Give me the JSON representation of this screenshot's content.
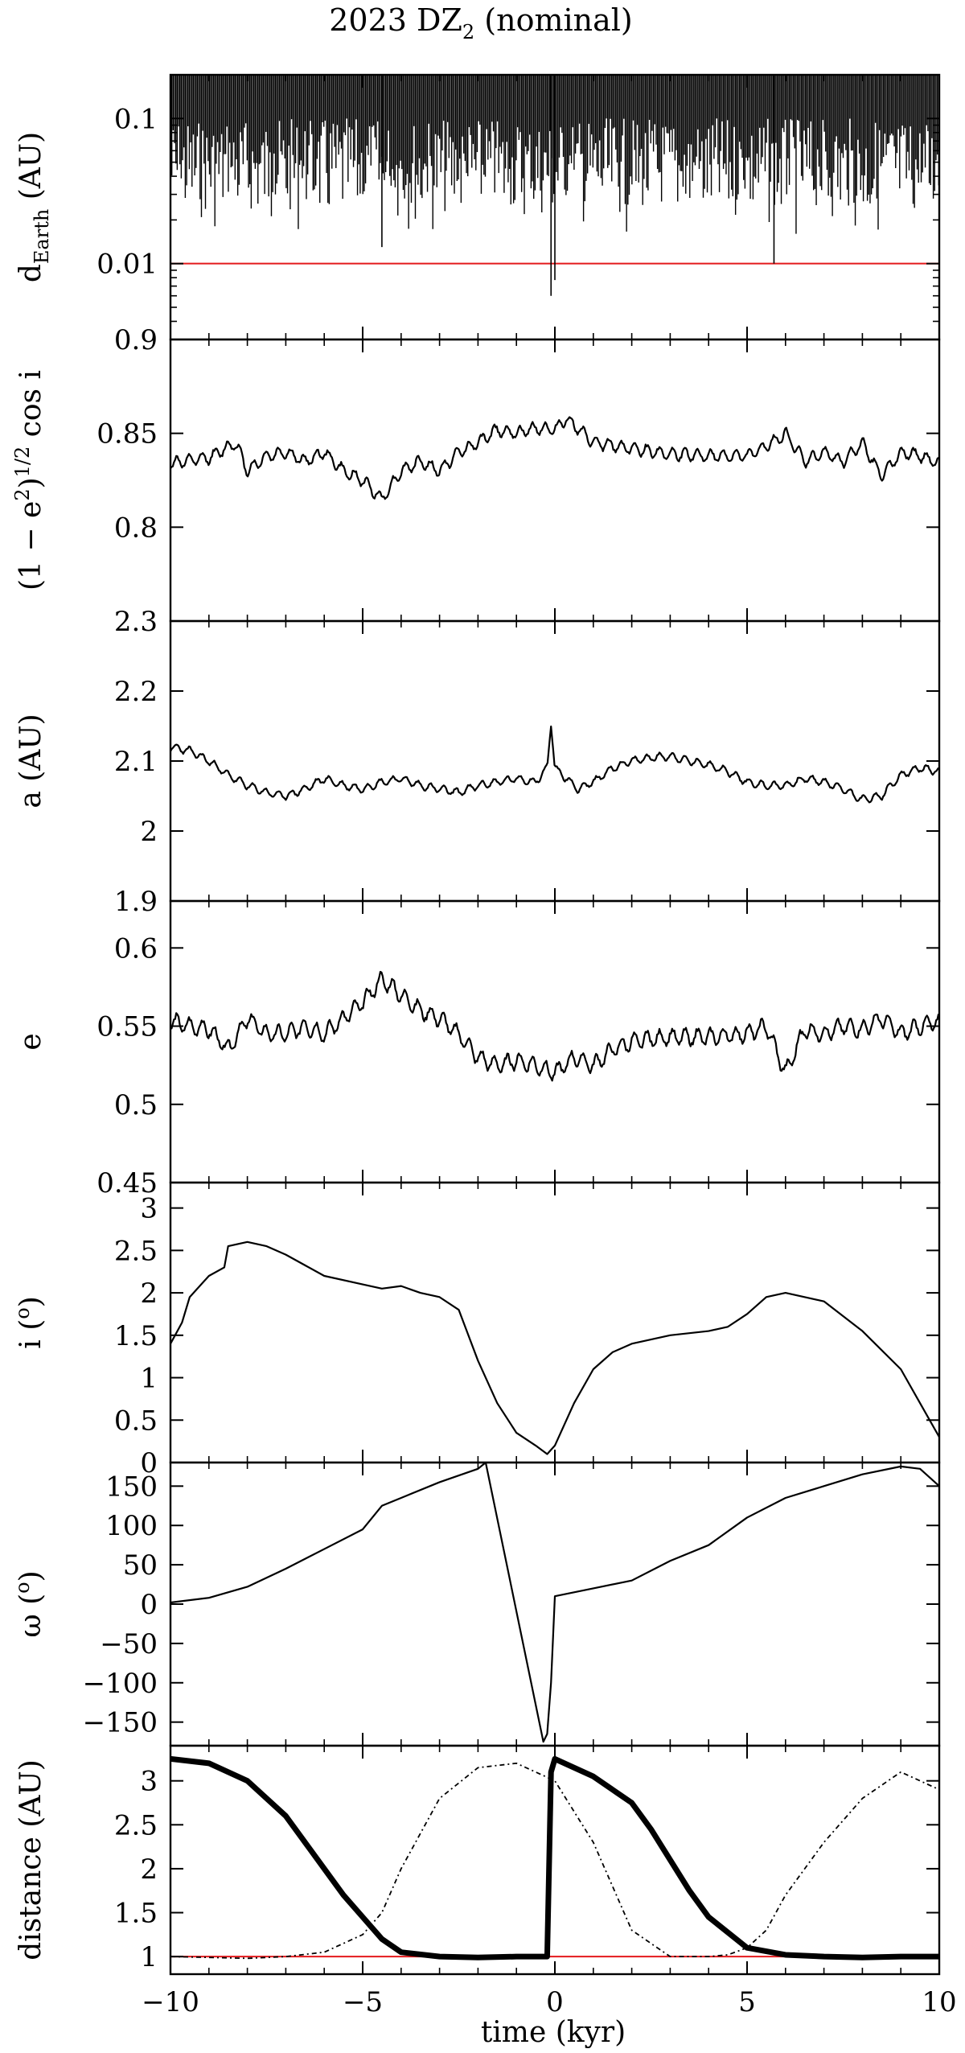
{
  "figure": {
    "title": "2023 DZ",
    "title_subscript": "2",
    "title_suffix": " (nominal)",
    "xlabel": "time (kyr)",
    "xlim": [
      -10,
      10
    ],
    "xticks": [
      "−10",
      "−5",
      "0",
      "5",
      "10"
    ],
    "xtick_values": [
      -10,
      -5,
      0,
      5,
      10
    ]
  },
  "chart_data": [
    {
      "type": "line",
      "panel": "dEarth",
      "ylabel_main": "d",
      "ylabel_sub": "Earth",
      "ylabel_suffix": " (AU)",
      "yscale": "log",
      "ylim": [
        0.003,
        0.2
      ],
      "yticks": [
        "0.1",
        "0.01"
      ],
      "ytick_values": [
        0.1,
        0.01
      ],
      "grid": false,
      "threshold": {
        "value": 0.01,
        "color": "#e41a1c"
      },
      "deep_minima": [
        {
          "x": -4.5,
          "y": 0.013
        },
        {
          "x": -0.1,
          "y": 0.006
        },
        {
          "x": 0.0,
          "y": 0.0077
        },
        {
          "x": 5.7,
          "y": 0.01
        }
      ],
      "series": [
        {
          "values_note_free": true,
          "x": [
            -10,
            10
          ],
          "y_range": [
            0.015,
            0.2
          ]
        }
      ]
    },
    {
      "type": "line",
      "panel": "kozai",
      "ylabel": "(1 − e",
      "ylabel_sup1": "2",
      "ylabel_mid": ")",
      "ylabel_sup2": "1/2",
      "ylabel_end": " cos i",
      "ylim": [
        0.75,
        0.9
      ],
      "yticks": [
        "0.9",
        "0.85",
        "0.8"
      ],
      "ytick_values": [
        0.9,
        0.85,
        0.8
      ],
      "series": [
        {
          "x": [
            -10,
            -9,
            -8.3,
            -8,
            -7.5,
            -7,
            -6.5,
            -6,
            -5.5,
            -5,
            -4.5,
            -4,
            -3.5,
            -3,
            -2.5,
            -2,
            -1.5,
            -1,
            -0.5,
            0,
            0.3,
            1,
            2,
            3,
            4,
            5,
            5.5,
            6,
            6.5,
            7,
            7.5,
            8,
            8.5,
            9,
            9.5,
            10
          ],
          "y": [
            0.834,
            0.837,
            0.845,
            0.83,
            0.838,
            0.84,
            0.835,
            0.84,
            0.83,
            0.825,
            0.815,
            0.83,
            0.835,
            0.83,
            0.84,
            0.845,
            0.852,
            0.85,
            0.853,
            0.852,
            0.858,
            0.845,
            0.842,
            0.839,
            0.838,
            0.838,
            0.843,
            0.85,
            0.835,
            0.84,
            0.835,
            0.845,
            0.827,
            0.84,
            0.838,
            0.834
          ]
        }
      ]
    },
    {
      "type": "line",
      "panel": "a",
      "ylabel": "a (AU)",
      "ylim": [
        1.9,
        2.3
      ],
      "yticks": [
        "2.3",
        "2.2",
        "2.1",
        "2",
        "1.9"
      ],
      "ytick_values": [
        2.3,
        2.2,
        2.1,
        2.0,
        1.9
      ],
      "series": [
        {
          "x": [
            -10,
            -9.5,
            -9,
            -8.5,
            -8,
            -7.5,
            -7,
            -6.5,
            -6,
            -5.5,
            -5,
            -4.5,
            -4,
            -3.5,
            -3,
            -2.5,
            -2,
            -1.5,
            -1,
            -0.5,
            -0.2,
            -0.1,
            0,
            0.3,
            0.6,
            1,
            1.5,
            2,
            2.5,
            3,
            3.5,
            4,
            4.5,
            5,
            5.5,
            6,
            6.5,
            7,
            7.5,
            8,
            8.5,
            9,
            9.5,
            10
          ],
          "y": [
            2.12,
            2.115,
            2.1,
            2.08,
            2.065,
            2.055,
            2.05,
            2.06,
            2.075,
            2.065,
            2.06,
            2.07,
            2.075,
            2.065,
            2.06,
            2.055,
            2.065,
            2.07,
            2.075,
            2.07,
            2.09,
            2.155,
            2.09,
            2.075,
            2.06,
            2.07,
            2.09,
            2.1,
            2.105,
            2.107,
            2.1,
            2.095,
            2.085,
            2.07,
            2.065,
            2.065,
            2.075,
            2.07,
            2.06,
            2.045,
            2.05,
            2.08,
            2.09,
            2.085
          ]
        }
      ]
    },
    {
      "type": "line",
      "panel": "e",
      "ylabel": "e",
      "ylim": [
        0.45,
        0.63
      ],
      "yticks": [
        "0.6",
        "0.55",
        "0.5",
        "0.45"
      ],
      "ytick_values": [
        0.6,
        0.55,
        0.5,
        0.45
      ],
      "series": [
        {
          "x": [
            -10,
            -9.5,
            -9,
            -8.5,
            -8,
            -7.5,
            -7,
            -6.5,
            -6,
            -5.5,
            -5,
            -4.5,
            -4,
            -3.5,
            -3,
            -2.5,
            -2,
            -1.5,
            -1,
            -0.5,
            0,
            0.5,
            1,
            1.5,
            2,
            3,
            4,
            5,
            5.5,
            6,
            6.5,
            7,
            7.5,
            8,
            8.5,
            9,
            9.5,
            10
          ],
          "y": [
            0.553,
            0.55,
            0.548,
            0.535,
            0.555,
            0.545,
            0.545,
            0.55,
            0.545,
            0.555,
            0.565,
            0.58,
            0.57,
            0.56,
            0.555,
            0.545,
            0.53,
            0.525,
            0.528,
            0.525,
            0.52,
            0.53,
            0.525,
            0.535,
            0.54,
            0.543,
            0.543,
            0.545,
            0.55,
            0.52,
            0.548,
            0.545,
            0.55,
            0.548,
            0.555,
            0.545,
            0.55,
            0.553
          ]
        }
      ]
    },
    {
      "type": "line",
      "panel": "i",
      "ylabel": "i (",
      "ylabel_sup": "o",
      "ylabel_end": ")",
      "ylim": [
        0,
        3.3
      ],
      "yticks": [
        "3",
        "2.5",
        "2",
        "1.5",
        "1",
        "0.5",
        "0"
      ],
      "ytick_values": [
        3,
        2.5,
        2,
        1.5,
        1,
        0.5,
        0
      ],
      "series": [
        {
          "x": [
            -10,
            -9.7,
            -9.5,
            -9,
            -8.6,
            -8.5,
            -8,
            -7.5,
            -7,
            -6,
            -5,
            -4.5,
            -4,
            -3.5,
            -3,
            -2.5,
            -2,
            -1.5,
            -1,
            -0.5,
            -0.2,
            0,
            0.5,
            1,
            1.5,
            2,
            3,
            4,
            4.5,
            5,
            5.5,
            6,
            7,
            8,
            9,
            9.5,
            10
          ],
          "y": [
            1.4,
            1.65,
            1.95,
            2.2,
            2.3,
            2.55,
            2.6,
            2.55,
            2.45,
            2.2,
            2.1,
            2.05,
            2.08,
            2.0,
            1.95,
            1.8,
            1.2,
            0.7,
            0.35,
            0.2,
            0.1,
            0.2,
            0.7,
            1.1,
            1.3,
            1.4,
            1.5,
            1.55,
            1.6,
            1.75,
            1.95,
            2.0,
            1.9,
            1.55,
            1.1,
            0.7,
            0.3
          ]
        }
      ]
    },
    {
      "type": "line",
      "panel": "omega",
      "ylabel": "ω (",
      "ylabel_sup": "o",
      "ylabel_end": ")",
      "ylim": [
        -180,
        180
      ],
      "yticks": [
        "150",
        "100",
        "50",
        "0",
        "−50",
        "−100",
        "−150"
      ],
      "ytick_values": [
        150,
        100,
        50,
        0,
        -50,
        -100,
        -150
      ],
      "series": [
        {
          "x": [
            -10,
            -9,
            -8,
            -7,
            -6,
            -5,
            -4.5,
            -4,
            -3,
            -2,
            -1.8,
            -0.3,
            -0.2,
            -0.1,
            0,
            1,
            2,
            3,
            4,
            5,
            6,
            7,
            8,
            9,
            9.5,
            10
          ],
          "y": [
            2,
            8,
            22,
            45,
            70,
            95,
            125,
            135,
            155,
            172,
            180,
            -175,
            -165,
            -100,
            10,
            20,
            30,
            55,
            75,
            110,
            135,
            150,
            165,
            175,
            172,
            150
          ]
        }
      ]
    },
    {
      "type": "line",
      "panel": "distance",
      "ylabel": "distance (AU)",
      "ylim": [
        0.8,
        3.4
      ],
      "yticks": [
        "3",
        "2.5",
        "2",
        "1.5",
        "1"
      ],
      "ytick_values": [
        3,
        2.5,
        2,
        1.5,
        1
      ],
      "threshold": {
        "value": 1.0,
        "color": "#e41a1c"
      },
      "series": [
        {
          "style": "thick",
          "x": [
            -10,
            -9,
            -8,
            -7,
            -6.5,
            -6,
            -5.5,
            -5,
            -4.5,
            -4,
            -3,
            -2,
            -1,
            -0.2,
            -0.1,
            0,
            1,
            2,
            2.5,
            3,
            3.5,
            4,
            5,
            6,
            7,
            8,
            9,
            10
          ],
          "y": [
            3.25,
            3.2,
            3.0,
            2.6,
            2.3,
            2.0,
            1.7,
            1.45,
            1.2,
            1.05,
            1.0,
            0.99,
            1.0,
            1.0,
            3.1,
            3.25,
            3.05,
            2.75,
            2.45,
            2.1,
            1.75,
            1.45,
            1.1,
            1.02,
            1.0,
            0.99,
            1.0,
            1.0
          ]
        },
        {
          "style": "dotted",
          "x": [
            -10,
            -8,
            -7,
            -6,
            -5,
            -4.5,
            -4,
            -3.5,
            -3,
            -2,
            -1,
            -0.5,
            0,
            1,
            2,
            3,
            4,
            4.5,
            5,
            5.5,
            6,
            7,
            8,
            9,
            10
          ],
          "y": [
            1.0,
            0.98,
            1.0,
            1.05,
            1.25,
            1.5,
            2.0,
            2.4,
            2.8,
            3.15,
            3.2,
            3.1,
            3.0,
            2.3,
            1.3,
            1.0,
            1.0,
            1.02,
            1.1,
            1.3,
            1.7,
            2.3,
            2.8,
            3.1,
            2.9
          ]
        }
      ]
    }
  ]
}
